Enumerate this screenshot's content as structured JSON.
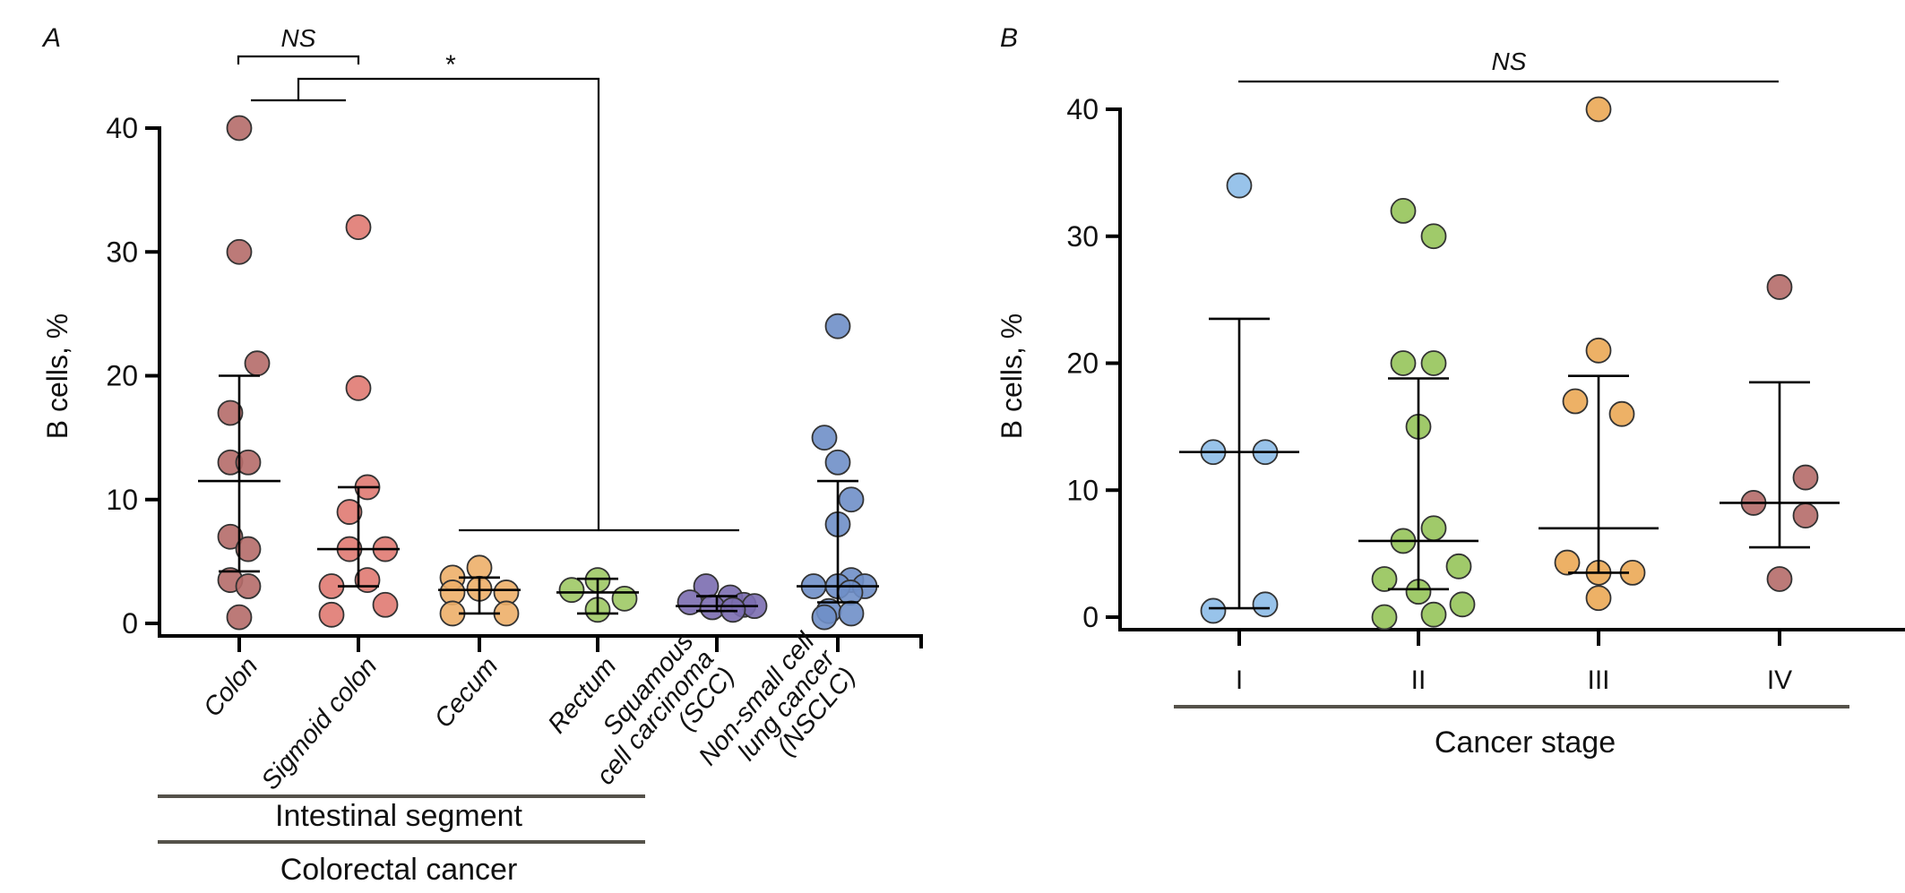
{
  "chart_data": [
    {
      "panel": "A",
      "type": "scatter",
      "subtype": "dot-plot with median and interquartile range",
      "ylabel": "B cells, %",
      "xlabel": "",
      "ylim": [
        0,
        40
      ],
      "yticks": [
        0,
        10,
        20,
        30,
        40
      ],
      "grid": false,
      "categories": [
        "Colon",
        "Sigmoid colon",
        "Cecum",
        "Rectum",
        "Squamous cell carcinoma (SCC)",
        "Non-small cell lung cancer (NSCLC)"
      ],
      "category_label_lines": [
        [
          "Colon"
        ],
        [
          "Sigmoid colon"
        ],
        [
          "Cecum"
        ],
        [
          "Rectum"
        ],
        [
          "Squamous",
          "cell carcinoma",
          "(SCC)"
        ],
        [
          "Non-small cell",
          "lung cancer",
          "(NSCLC)"
        ]
      ],
      "series": [
        {
          "name": "Colon",
          "color": "#B56B69",
          "values": [
            40,
            30,
            21,
            17,
            13,
            13,
            7,
            6,
            3.5,
            3,
            0.5
          ],
          "median": 11.5,
          "q1": 4.2,
          "q3": 20
        },
        {
          "name": "Sigmoid colon",
          "color": "#E07A72",
          "values": [
            32,
            19,
            11,
            9,
            6,
            6,
            3.5,
            3,
            1.5,
            0.7
          ],
          "median": 6,
          "q1": 3,
          "q3": 11
        },
        {
          "name": "Cecum",
          "color": "#EDAF69",
          "values": [
            4.5,
            3.7,
            2.8,
            2.5,
            2.5,
            0.8,
            0.8
          ],
          "median": 2.7,
          "q1": 0.8,
          "q3": 3.7
        },
        {
          "name": "Rectum",
          "color": "#9FC965",
          "values": [
            3.5,
            2.7,
            2,
            1.1
          ],
          "median": 2.5,
          "q1": 0.8,
          "q3": 3.6
        },
        {
          "name": "Squamous cell carcinoma (SCC)",
          "color": "#7B6DB0",
          "values": [
            3,
            2.1,
            1.7,
            1.5,
            1.4,
            1.3,
            1.1
          ],
          "median": 1.4,
          "q1": 1.0,
          "q3": 2.2
        },
        {
          "name": "Non-small cell lung cancer (NSCLC)",
          "color": "#6F8FC8",
          "values": [
            24,
            15,
            13,
            10,
            8,
            3.5,
            3,
            3,
            3,
            2.5,
            1,
            0.8,
            0.5
          ],
          "median": 3,
          "q1": 1.7,
          "q3": 11.5
        }
      ],
      "groupings": [
        {
          "label": "Intestinal segment",
          "categories": [
            "Colon",
            "Sigmoid colon",
            "Cecum",
            "Rectum"
          ]
        },
        {
          "label": "Colorectal cancer",
          "categories": [
            "Colon",
            "Sigmoid colon",
            "Cecum",
            "Rectum"
          ]
        }
      ],
      "annotations": [
        {
          "label": "NS",
          "comparison": "Colon vs Sigmoid colon"
        },
        {
          "label": "*",
          "comparison": "Colorectal (Colon + Sigmoid colon) vs Cecum, Rectum, SCC, NSCLC"
        }
      ]
    },
    {
      "panel": "B",
      "type": "scatter",
      "subtype": "dot-plot with median and interquartile range",
      "ylabel": "B cells, %",
      "xlabel": "Cancer stage",
      "ylim": [
        0,
        40
      ],
      "yticks": [
        0,
        10,
        20,
        30,
        40
      ],
      "grid": false,
      "categories": [
        "I",
        "II",
        "III",
        "IV"
      ],
      "series": [
        {
          "name": "I",
          "color": "#8DBCE8",
          "values": [
            34,
            13,
            13,
            1,
            0.5
          ],
          "median": 13,
          "q1": 0.7,
          "q3": 23.5
        },
        {
          "name": "II",
          "color": "#96C45A",
          "values": [
            32,
            30,
            20,
            20,
            15,
            7,
            6,
            4,
            3,
            2,
            1,
            0.2,
            0
          ],
          "median": 6,
          "q1": 2.2,
          "q3": 18.8
        },
        {
          "name": "III",
          "color": "#EBA955",
          "values": [
            40,
            21,
            17,
            16,
            4.3,
            3.5,
            3.5,
            1.5
          ],
          "median": 7,
          "q1": 3.5,
          "q3": 19
        },
        {
          "name": "IV",
          "color": "#B56B69",
          "values": [
            26,
            11,
            9,
            8,
            3
          ],
          "median": 9,
          "q1": 5.5,
          "q3": 18.5
        }
      ],
      "annotations": [
        {
          "label": "NS",
          "comparison": "across stages I–IV"
        }
      ]
    }
  ],
  "panels": {
    "a": {
      "letter": "A",
      "ns_label": "NS",
      "sig_label": "*",
      "group1": "Intestinal segment",
      "group2": "Colorectal cancer"
    },
    "b": {
      "letter": "B",
      "ns_label": "NS",
      "xlabel": "Cancer stage"
    }
  }
}
